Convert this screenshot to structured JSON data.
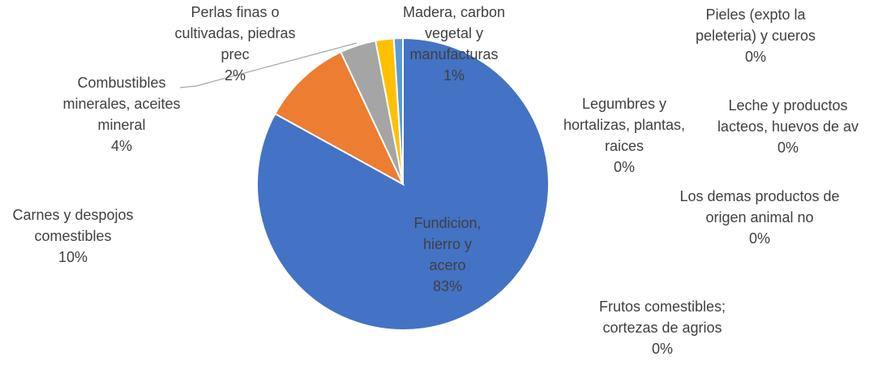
{
  "chart_data": {
    "type": "pie",
    "categories": [
      "Fundicion, hierro y acero",
      "Carnes y despojos comestibles",
      "Combustibles minerales, aceites mineral",
      "Perlas finas o cultivadas, piedras prec",
      "Madera, carbon vegetal y manufacturas",
      "Pieles (expto la peleteria) y cueros",
      "Leche y productos lacteos, huevos de av",
      "Legumbres y hortalizas, plantas, raices",
      "Los demas productos de origen animal no",
      "Frutos comestibles; cortezas de agrios"
    ],
    "values": [
      83,
      10,
      4,
      2,
      1,
      0,
      0,
      0,
      0,
      0
    ],
    "value_labels": [
      "83%",
      "10%",
      "4%",
      "2%",
      "1%",
      "0%",
      "0%",
      "0%",
      "0%",
      "0%"
    ],
    "colors": [
      "#4472c4",
      "#ed7d31",
      "#a5a5a5",
      "#ffc000",
      "#5b9bd5",
      "#70ad47",
      "#264478",
      "#9e480e",
      "#636363",
      "#997300"
    ]
  }
}
